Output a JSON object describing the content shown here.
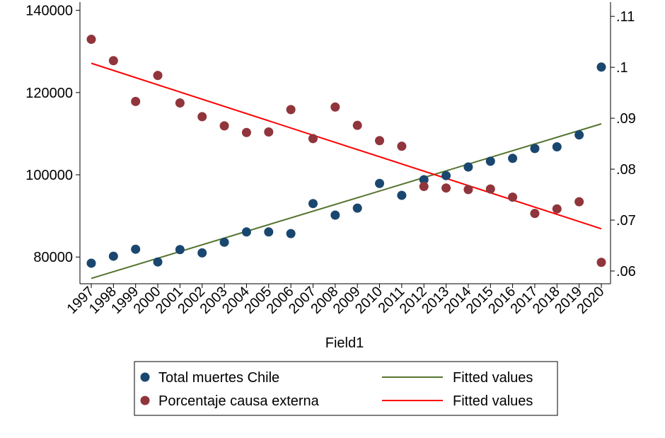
{
  "chart_data": {
    "type": "scatter",
    "xlabel": "Field1",
    "x": [
      "1997",
      "1998",
      "1999",
      "2000",
      "2001",
      "2002",
      "2003",
      "2004",
      "2005",
      "2006",
      "2007",
      "2008",
      "2009",
      "2010",
      "2011",
      "2012",
      "2013",
      "2014",
      "2015",
      "2016",
      "2017",
      "2018",
      "2019",
      "2020"
    ],
    "y_left": {
      "lim": [
        73500,
        142000
      ],
      "ticks": [
        80000,
        100000,
        120000,
        140000
      ],
      "tick_labels": [
        "80000",
        "100000",
        "120000",
        "140000"
      ]
    },
    "y_right": {
      "lim": [
        0.0575,
        0.1128
      ],
      "ticks": [
        0.06,
        0.07,
        0.08,
        0.09,
        0.1,
        0.11
      ],
      "tick_labels": [
        ".06",
        ".07",
        ".08",
        ".09",
        ".1",
        ".11"
      ]
    },
    "series": [
      {
        "name": "Total muertes Chile",
        "kind": "scatter",
        "axis": "left",
        "color": "#1a476f",
        "values": [
          78500,
          80200,
          81900,
          78800,
          81800,
          81000,
          83600,
          86100,
          86100,
          85700,
          93000,
          90200,
          91900,
          97900,
          95000,
          98800,
          99800,
          101900,
          103300,
          104000,
          106400,
          106800,
          109700,
          126200
        ]
      },
      {
        "name": "Porcentaje causa externa",
        "kind": "scatter",
        "axis": "right",
        "color": "#90353b",
        "values": [
          0.1055,
          0.1013,
          0.0933,
          0.0984,
          0.093,
          0.0903,
          0.0885,
          0.0872,
          0.0873,
          0.0917,
          0.086,
          0.0922,
          0.0886,
          0.0856,
          0.0845,
          0.0766,
          0.0763,
          0.076,
          0.0761,
          0.0745,
          0.0713,
          0.0722,
          0.0736,
          0.0617
        ]
      },
      {
        "name": "Fitted values",
        "kind": "line",
        "axis": "left",
        "color": "#55752f",
        "x": [
          "1997",
          "2020"
        ],
        "values": [
          74800,
          112400
        ]
      },
      {
        "name": "Fitted values",
        "kind": "line",
        "axis": "right",
        "color": "#ff0000",
        "x": [
          "1997",
          "2020"
        ],
        "values": [
          0.1008,
          0.0683
        ]
      }
    ],
    "legend": {
      "placement": "bottom",
      "entries": [
        {
          "label": "Total muertes Chile",
          "marker": "dot",
          "color": "#1a476f"
        },
        {
          "label": "Fitted values",
          "marker": "line",
          "color": "#55752f"
        },
        {
          "label": "Porcentaje causa externa",
          "marker": "dot",
          "color": "#90353b"
        },
        {
          "label": "Fitted values",
          "marker": "line",
          "color": "#ff0000"
        }
      ]
    },
    "grid": false
  }
}
